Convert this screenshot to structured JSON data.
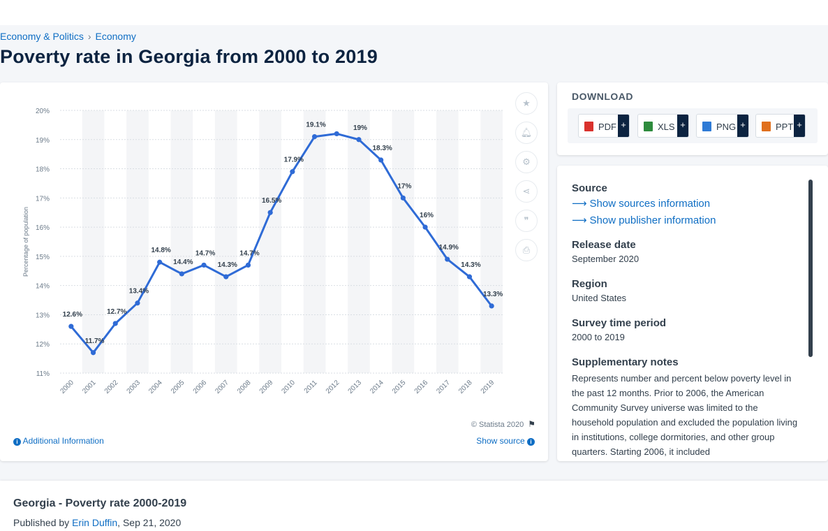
{
  "breadcrumb": {
    "item1": "Economy & Politics",
    "item2": "Economy",
    "sep": "›"
  },
  "page_title": "Poverty rate in Georgia from 2000 to 2019",
  "chart_data": {
    "type": "line",
    "title": "",
    "xlabel": "",
    "ylabel": "Percentage of population",
    "ylim": [
      11,
      20
    ],
    "yticks": [
      "11%",
      "12%",
      "13%",
      "14%",
      "15%",
      "16%",
      "17%",
      "18%",
      "19%",
      "20%"
    ],
    "grid": true,
    "line_color": "#2f6bd6",
    "categories": [
      "2000",
      "2001",
      "2002",
      "2003",
      "2004",
      "2005",
      "2006",
      "2007",
      "2008",
      "2009",
      "2010",
      "2011",
      "2012",
      "2013",
      "2014",
      "2015",
      "2016",
      "2017",
      "2018",
      "2019"
    ],
    "series": [
      {
        "values": [
          12.6,
          11.7,
          12.7,
          13.4,
          14.8,
          14.4,
          14.7,
          14.3,
          14.7,
          16.5,
          17.9,
          19.1,
          19.2,
          19,
          18.3,
          17,
          16,
          14.9,
          14.3,
          13.3
        ]
      }
    ],
    "data_labels": [
      "12.6%",
      "11.7%",
      "12.7%",
      "13.4%",
      "14.8%",
      "14.4%",
      "14.7%",
      "14.3%",
      "14.7%",
      "16.5%",
      "17.9%",
      "19.1%",
      "",
      "19%",
      "18.3%",
      "17%",
      "16%",
      "14.9%",
      "14.3%",
      "13.3%"
    ]
  },
  "chart_footer": {
    "copyright": "© Statista 2020",
    "additional_info": "Additional Information",
    "show_source": "Show source"
  },
  "tools": [
    "star-icon",
    "bell-icon",
    "gear-icon",
    "share-icon",
    "quote-icon",
    "print-icon"
  ],
  "download": {
    "title": "DOWNLOAD",
    "formats": [
      {
        "label": "PDF",
        "color": "#d9322d"
      },
      {
        "label": "XLS",
        "color": "#2e8b3d"
      },
      {
        "label": "PNG",
        "color": "#2f7bd6"
      },
      {
        "label": "PPT",
        "color": "#e0701e"
      }
    ],
    "plus": "+"
  },
  "meta": {
    "source_h": "Source",
    "show_sources": "Show sources information",
    "show_publisher": "Show publisher information",
    "release_h": "Release date",
    "release_v": "September 2020",
    "region_h": "Region",
    "region_v": "United States",
    "period_h": "Survey time period",
    "period_v": "2000 to 2019",
    "notes_h": "Supplementary notes",
    "notes_v": "Represents number and percent below poverty level in the past 12 months. Prior to 2006, the American Community Survey universe was limited to the household population and excluded the population living in institutions, college dormitories, and other group quarters. Starting 2006, it included"
  },
  "bottom": {
    "title": "Georgia - Poverty rate 2000-2019",
    "published_by": "Published by",
    "author": "Erin Duffin",
    "date": ", Sep 21, 2020"
  }
}
